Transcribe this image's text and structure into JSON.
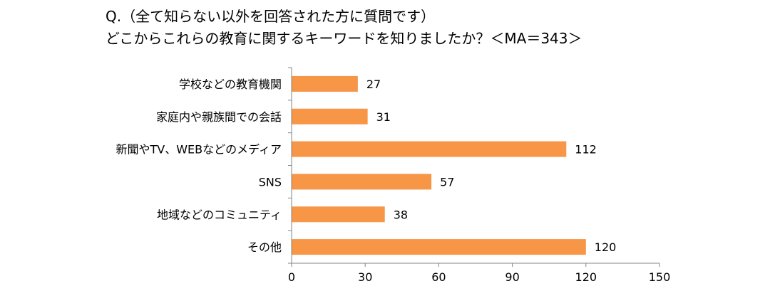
{
  "title": {
    "line1": "Q.（全て知らない以外を回答された方に質問です）",
    "line2": "どこからこれらの教育に関するキーワードを知りましたか？＜MA＝343＞"
  },
  "chart_data": {
    "type": "bar",
    "orientation": "horizontal",
    "categories": [
      "学校などの教育機関",
      "家庭内や親族間での会話",
      "新聞やTV、WEBなどのメディア",
      "SNS",
      "地域などのコミュニティ",
      "その他"
    ],
    "values": [
      27,
      31,
      112,
      57,
      38,
      120
    ],
    "xlim": [
      0,
      150
    ],
    "xticks": [
      0,
      30,
      60,
      90,
      120,
      150
    ],
    "xlabel": "",
    "ylabel": "",
    "grid": false,
    "legend": "none",
    "bar_color": "#F79646",
    "axis_color": "#868686"
  }
}
